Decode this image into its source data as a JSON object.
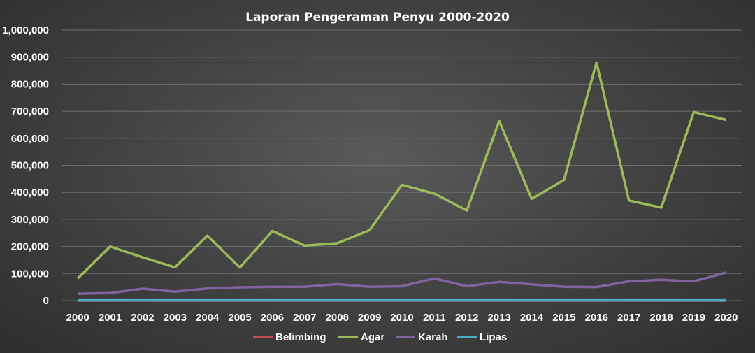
{
  "chart_data": {
    "type": "line",
    "title": "Laporan Pengeraman Penyu 2000-2020",
    "categories": [
      "2000",
      "2001",
      "2002",
      "2003",
      "2004",
      "2005",
      "2006",
      "2007",
      "2008",
      "2009",
      "2010",
      "2011",
      "2012",
      "2013",
      "2014",
      "2015",
      "2016",
      "2017",
      "2018",
      "2019",
      "2020"
    ],
    "ylim": [
      0,
      1000000
    ],
    "yticks": [
      "0",
      "100,000",
      "200,000",
      "300,000",
      "400,000",
      "500,000",
      "600,000",
      "700,000",
      "800,000",
      "900,000",
      "1,000,000"
    ],
    "grid": true,
    "legend_position": "bottom",
    "series": [
      {
        "name": "Belimbing",
        "color": "#c0504d",
        "values": [
          0,
          0,
          0,
          0,
          0,
          0,
          0,
          0,
          0,
          0,
          0,
          0,
          0,
          0,
          0,
          0,
          0,
          0,
          0,
          0,
          0
        ]
      },
      {
        "name": "Agar",
        "color": "#9bbb59",
        "values": [
          82000,
          200000,
          160000,
          123000,
          240000,
          122000,
          257000,
          203000,
          212000,
          260000,
          428000,
          395000,
          333000,
          664000,
          376000,
          446000,
          880000,
          370000,
          344000,
          697000,
          668000
        ]
      },
      {
        "name": "Karah",
        "color": "#8064a2",
        "values": [
          25000,
          28000,
          44000,
          33000,
          45000,
          49000,
          51000,
          51000,
          61000,
          51000,
          53000,
          82000,
          53000,
          69000,
          60000,
          51000,
          50000,
          71000,
          77000,
          71000,
          104000
        ]
      },
      {
        "name": "Lipas",
        "color": "#4bacc6",
        "values": [
          1000,
          1000,
          1000,
          1000,
          1000,
          1000,
          1000,
          1000,
          1000,
          1000,
          1000,
          1000,
          1000,
          1000,
          1000,
          1000,
          1000,
          1000,
          1000,
          1000,
          1000
        ]
      }
    ]
  }
}
